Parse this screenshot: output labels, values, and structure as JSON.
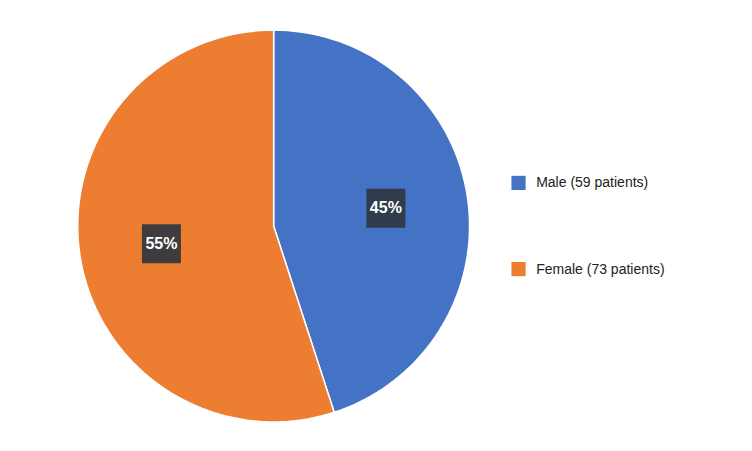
{
  "chart_data": {
    "type": "pie",
    "categories": [
      "Male (59 patients)",
      "Female (73 patients)"
    ],
    "values": [
      45,
      55
    ],
    "value_labels": [
      "45%",
      "55%"
    ],
    "colors": [
      "#4472C4",
      "#ED7D31"
    ],
    "data_labels": true,
    "legend": "right"
  }
}
